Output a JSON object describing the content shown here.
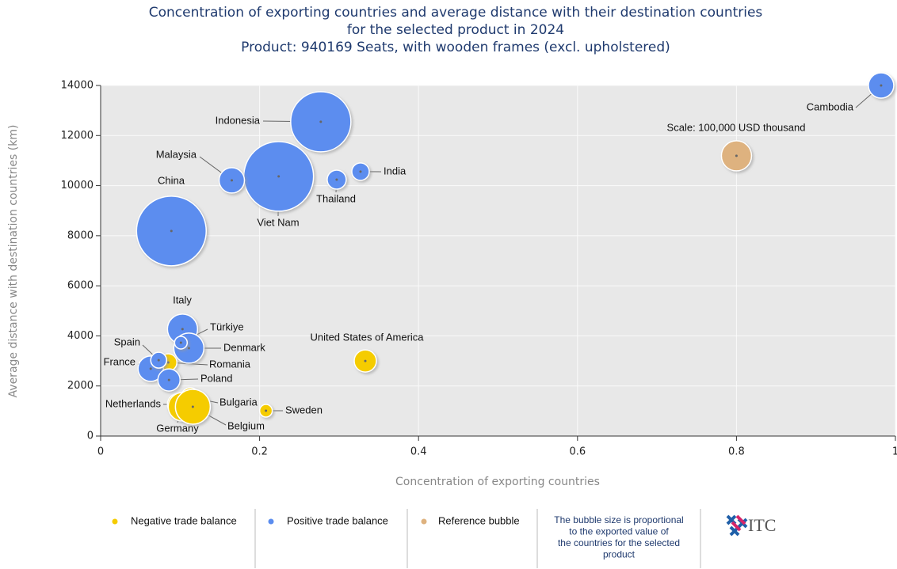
{
  "chart_data": {
    "type": "bubble",
    "title": [
      "Concentration of exporting countries and average distance with their destination countries",
      "for the selected product in 2024",
      "Product: 940169 Seats, with wooden frames (excl. upholstered)"
    ],
    "x_label": "Concentration of exporting countries",
    "y_label": "Average distance with destination countries (km)",
    "xlim": [
      0,
      1
    ],
    "xticks": [
      0,
      0.2,
      0.4,
      0.6,
      0.8,
      1
    ],
    "ylim": [
      0,
      14000
    ],
    "yticks": [
      0,
      2000,
      4000,
      6000,
      8000,
      10000,
      12000,
      14000
    ],
    "grid": true,
    "series": [
      {
        "name": "Negative trade balance",
        "color": "#f5cc00",
        "labels": [
          "Romania",
          "Netherlands",
          "Germany",
          "Bulgaria",
          "Belgium",
          "Sweden",
          "United States of America"
        ],
        "x": [
          0.085,
          0.098,
          0.103,
          0.113,
          0.116,
          0.208,
          0.333
        ],
        "values": [
          2940,
          1260,
          1170,
          1550,
          1170,
          1010,
          3000
        ],
        "sizes": [
          33500,
          54300,
          89800,
          39900,
          134000,
          17700,
          54300
        ]
      },
      {
        "name": "Positive trade balance",
        "color": "#5b8def",
        "labels": [
          "China",
          "Viet Nam",
          "Indonesia",
          "Cambodia",
          "Malaysia",
          "Thailand",
          "India",
          "Italy",
          "Denmark",
          "Türkiye",
          "France",
          "Spain",
          "Poland"
        ],
        "x": [
          0.089,
          0.224,
          0.277,
          0.982,
          0.165,
          0.297,
          0.327,
          0.103,
          0.111,
          0.101,
          0.063,
          0.073,
          0.086
        ],
        "values": [
          8190,
          10370,
          12550,
          14000,
          10210,
          10240,
          10560,
          4270,
          3510,
          3730,
          2690,
          3030,
          2240
        ],
        "sizes": [
          536000,
          536000,
          400000,
          70900,
          70900,
          39900,
          33500,
          100000,
          100000,
          17700,
          70900,
          27700,
          54300
        ]
      },
      {
        "name": "Reference bubble",
        "color": "#deb27f",
        "labels": [
          "Scale: 100,000 USD thousand"
        ],
        "x": [
          0.8
        ],
        "values": [
          11190
        ],
        "sizes": [
          100000
        ]
      }
    ],
    "note": [
      "The bubble size is proportional",
      "to the exported value of",
      "the countries for the selected",
      "product"
    ],
    "logo": "ITC"
  }
}
